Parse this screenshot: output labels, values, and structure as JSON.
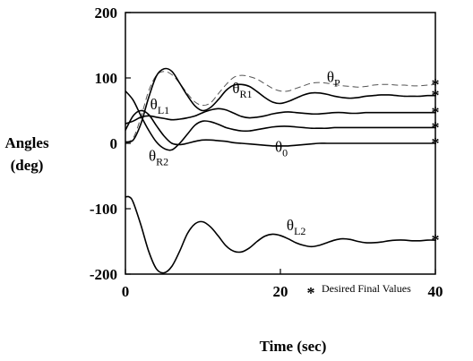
{
  "chart_data": {
    "type": "line",
    "xlabel": "Time (sec)",
    "ylabel_line1": "Angles",
    "ylabel_line2": "(deg)",
    "xlim": [
      0,
      40
    ],
    "ylim": [
      -200,
      200
    ],
    "x_ticks": [
      0,
      20,
      40
    ],
    "y_ticks": [
      -200,
      -100,
      0,
      100,
      200
    ],
    "x_tick_labels": [
      "0",
      "20",
      "40"
    ],
    "y_tick_labels": [
      "-200",
      "-100",
      "0",
      "100",
      "200"
    ],
    "grid": false,
    "legend": {
      "marker": "*",
      "text": "Desired Final Values",
      "placement": "bottom-right"
    },
    "series": [
      {
        "name": "θP",
        "label_main": "θ",
        "label_sub": "P",
        "dashed": true,
        "label_pos": [
          26,
          94
        ],
        "points": [
          [
            0,
            2
          ],
          [
            1,
            8
          ],
          [
            2,
            40
          ],
          [
            3,
            80
          ],
          [
            4,
            104
          ],
          [
            5,
            110
          ],
          [
            6,
            105
          ],
          [
            7,
            92
          ],
          [
            8,
            76
          ],
          [
            9,
            63
          ],
          [
            10,
            58
          ],
          [
            11,
            62
          ],
          [
            12,
            76
          ],
          [
            13,
            90
          ],
          [
            14,
            101
          ],
          [
            15,
            104
          ],
          [
            16,
            102
          ],
          [
            17,
            98
          ],
          [
            18,
            91
          ],
          [
            19,
            84
          ],
          [
            20,
            80
          ],
          [
            21,
            80
          ],
          [
            22,
            84
          ],
          [
            23,
            88
          ],
          [
            24,
            92
          ],
          [
            25,
            93
          ],
          [
            26,
            92
          ],
          [
            27,
            90
          ],
          [
            28,
            88
          ],
          [
            29,
            87
          ],
          [
            30,
            86
          ],
          [
            31,
            87
          ],
          [
            32,
            89
          ],
          [
            33,
            90
          ],
          [
            34,
            90
          ],
          [
            35,
            89
          ],
          [
            36,
            89
          ],
          [
            37,
            88
          ],
          [
            38,
            88
          ],
          [
            39,
            89
          ],
          [
            40,
            90
          ]
        ],
        "final": 90
      },
      {
        "name": "θR1",
        "label_main": "θ",
        "label_sub": "R1",
        "dashed": false,
        "label_pos": [
          13.8,
          77
        ],
        "points": [
          [
            0,
            2
          ],
          [
            1,
            5
          ],
          [
            2,
            30
          ],
          [
            3,
            70
          ],
          [
            4,
            103
          ],
          [
            5,
            114
          ],
          [
            6,
            110
          ],
          [
            7,
            92
          ],
          [
            8,
            73
          ],
          [
            9,
            57
          ],
          [
            10,
            50
          ],
          [
            11,
            55
          ],
          [
            12,
            67
          ],
          [
            13,
            81
          ],
          [
            14,
            89
          ],
          [
            15,
            90
          ],
          [
            16,
            87
          ],
          [
            17,
            79
          ],
          [
            18,
            70
          ],
          [
            19,
            63
          ],
          [
            20,
            61
          ],
          [
            21,
            64
          ],
          [
            22,
            69
          ],
          [
            23,
            74
          ],
          [
            24,
            77
          ],
          [
            25,
            77
          ],
          [
            26,
            75
          ],
          [
            27,
            72
          ],
          [
            28,
            70
          ],
          [
            29,
            69
          ],
          [
            30,
            70
          ],
          [
            31,
            72
          ],
          [
            32,
            73
          ],
          [
            33,
            74
          ],
          [
            34,
            74
          ],
          [
            35,
            73
          ],
          [
            36,
            72
          ],
          [
            37,
            72
          ],
          [
            38,
            72
          ],
          [
            39,
            73
          ],
          [
            40,
            73
          ]
        ],
        "final": 73
      },
      {
        "name": "θL1",
        "label_main": "θ",
        "label_sub": "L1",
        "dashed": false,
        "label_pos": [
          3.2,
          52
        ],
        "points": [
          [
            0,
            30
          ],
          [
            1,
            34
          ],
          [
            2,
            40
          ],
          [
            3,
            42
          ],
          [
            4,
            40
          ],
          [
            5,
            38
          ],
          [
            6,
            36
          ],
          [
            7,
            37
          ],
          [
            8,
            39
          ],
          [
            9,
            42
          ],
          [
            10,
            47
          ],
          [
            11,
            51
          ],
          [
            12,
            53
          ],
          [
            13,
            51
          ],
          [
            14,
            46
          ],
          [
            15,
            41
          ],
          [
            16,
            39
          ],
          [
            17,
            40
          ],
          [
            18,
            42
          ],
          [
            19,
            45
          ],
          [
            20,
            47
          ],
          [
            21,
            48
          ],
          [
            22,
            47
          ],
          [
            23,
            46
          ],
          [
            24,
            45
          ],
          [
            25,
            45
          ],
          [
            26,
            46
          ],
          [
            27,
            47
          ],
          [
            28,
            47
          ],
          [
            29,
            46
          ],
          [
            30,
            46
          ],
          [
            31,
            47
          ],
          [
            32,
            47
          ],
          [
            33,
            47
          ],
          [
            34,
            47
          ],
          [
            35,
            47
          ],
          [
            36,
            47
          ],
          [
            37,
            47
          ],
          [
            38,
            47
          ],
          [
            39,
            47
          ],
          [
            40,
            47
          ]
        ],
        "final": 47
      },
      {
        "name": "θR2",
        "label_main": "θ",
        "label_sub": "R2",
        "dashed": false,
        "label_pos": [
          3,
          -27
        ],
        "points": [
          [
            0,
            80
          ],
          [
            1,
            66
          ],
          [
            2,
            42
          ],
          [
            3,
            20
          ],
          [
            4,
            2
          ],
          [
            5,
            -8
          ],
          [
            6,
            -10
          ],
          [
            7,
            0
          ],
          [
            8,
            14
          ],
          [
            9,
            28
          ],
          [
            10,
            34
          ],
          [
            11,
            33
          ],
          [
            12,
            29
          ],
          [
            13,
            24
          ],
          [
            14,
            21
          ],
          [
            15,
            19
          ],
          [
            16,
            19
          ],
          [
            17,
            21
          ],
          [
            18,
            23
          ],
          [
            19,
            25
          ],
          [
            20,
            26
          ],
          [
            21,
            26
          ],
          [
            22,
            25
          ],
          [
            23,
            24
          ],
          [
            24,
            23
          ],
          [
            25,
            23
          ],
          [
            26,
            23
          ],
          [
            27,
            24
          ],
          [
            28,
            24
          ],
          [
            29,
            24
          ],
          [
            30,
            24
          ],
          [
            31,
            24
          ],
          [
            32,
            24
          ],
          [
            33,
            24
          ],
          [
            34,
            24
          ],
          [
            35,
            24
          ],
          [
            36,
            24
          ],
          [
            37,
            24
          ],
          [
            38,
            24
          ],
          [
            39,
            24
          ],
          [
            40,
            24
          ]
        ],
        "final": 24
      },
      {
        "name": "θ0",
        "label_main": "θ",
        "label_sub": "0",
        "dashed": false,
        "label_pos": [
          19.3,
          -13
        ],
        "points": [
          [
            0,
            20
          ],
          [
            1,
            42
          ],
          [
            2,
            50
          ],
          [
            3,
            44
          ],
          [
            4,
            27
          ],
          [
            5,
            11
          ],
          [
            6,
            0
          ],
          [
            7,
            -2
          ],
          [
            8,
            0
          ],
          [
            9,
            3
          ],
          [
            10,
            5
          ],
          [
            11,
            5
          ],
          [
            12,
            4
          ],
          [
            13,
            3
          ],
          [
            14,
            1
          ],
          [
            15,
            0
          ],
          [
            16,
            -1
          ],
          [
            17,
            -2
          ],
          [
            18,
            -3
          ],
          [
            19,
            -4
          ],
          [
            20,
            -4
          ],
          [
            21,
            -4
          ],
          [
            22,
            -3
          ],
          [
            23,
            -2
          ],
          [
            24,
            -1
          ],
          [
            25,
            0
          ],
          [
            26,
            0
          ],
          [
            27,
            0
          ],
          [
            28,
            0
          ],
          [
            29,
            0
          ],
          [
            30,
            0
          ],
          [
            31,
            0
          ],
          [
            32,
            0
          ],
          [
            33,
            0
          ],
          [
            34,
            0
          ],
          [
            35,
            0
          ],
          [
            36,
            0
          ],
          [
            37,
            0
          ],
          [
            38,
            0
          ],
          [
            39,
            0
          ],
          [
            40,
            0
          ]
        ],
        "final": 0
      },
      {
        "name": "θL2",
        "label_main": "θ",
        "label_sub": "L2",
        "dashed": false,
        "label_pos": [
          20.8,
          -133
        ],
        "points": [
          [
            0,
            -82
          ],
          [
            0.5,
            -82
          ],
          [
            1,
            -90
          ],
          [
            2,
            -125
          ],
          [
            3,
            -165
          ],
          [
            4,
            -192
          ],
          [
            5,
            -198
          ],
          [
            6,
            -188
          ],
          [
            7,
            -165
          ],
          [
            8,
            -138
          ],
          [
            9,
            -123
          ],
          [
            10,
            -120
          ],
          [
            11,
            -128
          ],
          [
            12,
            -142
          ],
          [
            13,
            -157
          ],
          [
            14,
            -165
          ],
          [
            15,
            -166
          ],
          [
            16,
            -160
          ],
          [
            17,
            -150
          ],
          [
            18,
            -142
          ],
          [
            19,
            -139
          ],
          [
            20,
            -141
          ],
          [
            21,
            -146
          ],
          [
            22,
            -152
          ],
          [
            23,
            -156
          ],
          [
            24,
            -158
          ],
          [
            25,
            -156
          ],
          [
            26,
            -152
          ],
          [
            27,
            -148
          ],
          [
            28,
            -146
          ],
          [
            29,
            -147
          ],
          [
            30,
            -150
          ],
          [
            31,
            -152
          ],
          [
            32,
            -152
          ],
          [
            33,
            -151
          ],
          [
            34,
            -149
          ],
          [
            35,
            -148
          ],
          [
            36,
            -148
          ],
          [
            37,
            -149
          ],
          [
            38,
            -149
          ],
          [
            39,
            -148
          ],
          [
            40,
            -148
          ]
        ],
        "final": -148
      }
    ]
  }
}
